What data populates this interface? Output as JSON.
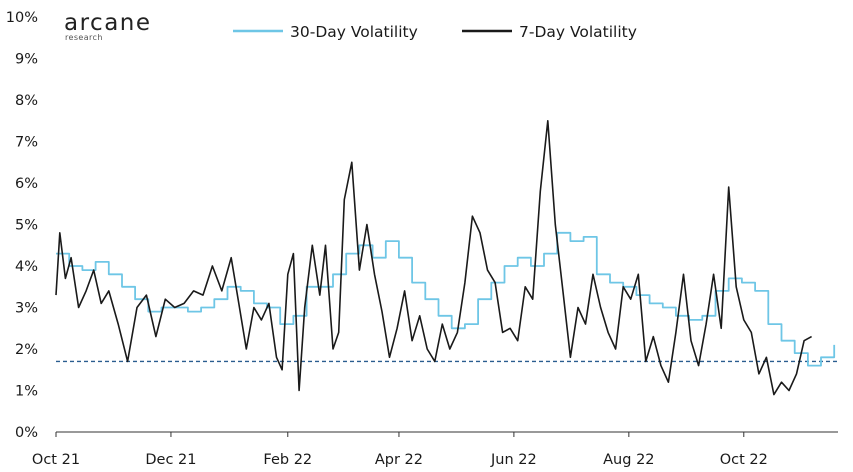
{
  "logo": {
    "name": "arcane",
    "sub": "research"
  },
  "chart_data": {
    "type": "line",
    "title": "",
    "xlabel": "",
    "ylabel": "",
    "ylim": [
      0,
      10
    ],
    "y_ticks": [
      "0%",
      "1%",
      "2%",
      "3%",
      "4%",
      "5%",
      "6%",
      "7%",
      "8%",
      "9%",
      "10%"
    ],
    "x_ticks": [
      "Oct 21",
      "Dec 21",
      "Feb 22",
      "Apr 22",
      "Jun 22",
      "Aug 22",
      "Oct 22"
    ],
    "x_range": [
      "2021-10-01",
      "2022-11-20"
    ],
    "legend": "top-center",
    "grid": false,
    "reference_line": {
      "value": 1.7,
      "style": "dashed",
      "color": "#2a5d8f"
    },
    "series": [
      {
        "name": "30-Day Volatility",
        "color": "#6ec6e6",
        "points": [
          [
            "2021-10-01",
            4.3
          ],
          [
            "2021-10-08",
            4.0
          ],
          [
            "2021-10-15",
            3.9
          ],
          [
            "2021-10-22",
            4.1
          ],
          [
            "2021-10-29",
            3.8
          ],
          [
            "2021-11-05",
            3.5
          ],
          [
            "2021-11-12",
            3.2
          ],
          [
            "2021-11-19",
            2.9
          ],
          [
            "2021-11-26",
            3.0
          ],
          [
            "2021-12-03",
            3.0
          ],
          [
            "2021-12-10",
            2.9
          ],
          [
            "2021-12-17",
            3.0
          ],
          [
            "2021-12-24",
            3.2
          ],
          [
            "2021-12-31",
            3.5
          ],
          [
            "2022-01-07",
            3.4
          ],
          [
            "2022-01-14",
            3.1
          ],
          [
            "2022-01-21",
            3.0
          ],
          [
            "2022-01-28",
            2.6
          ],
          [
            "2022-02-04",
            2.8
          ],
          [
            "2022-02-11",
            3.5
          ],
          [
            "2022-02-18",
            3.5
          ],
          [
            "2022-02-25",
            3.8
          ],
          [
            "2022-03-04",
            4.3
          ],
          [
            "2022-03-11",
            4.5
          ],
          [
            "2022-03-18",
            4.2
          ],
          [
            "2022-03-25",
            4.6
          ],
          [
            "2022-04-01",
            4.2
          ],
          [
            "2022-04-08",
            3.6
          ],
          [
            "2022-04-15",
            3.2
          ],
          [
            "2022-04-22",
            2.8
          ],
          [
            "2022-04-29",
            2.5
          ],
          [
            "2022-05-06",
            2.6
          ],
          [
            "2022-05-13",
            3.2
          ],
          [
            "2022-05-20",
            3.6
          ],
          [
            "2022-05-27",
            4.0
          ],
          [
            "2022-06-03",
            4.2
          ],
          [
            "2022-06-10",
            4.0
          ],
          [
            "2022-06-17",
            4.3
          ],
          [
            "2022-06-24",
            4.8
          ],
          [
            "2022-07-01",
            4.6
          ],
          [
            "2022-07-08",
            4.7
          ],
          [
            "2022-07-15",
            3.8
          ],
          [
            "2022-07-22",
            3.6
          ],
          [
            "2022-07-29",
            3.5
          ],
          [
            "2022-08-05",
            3.3
          ],
          [
            "2022-08-12",
            3.1
          ],
          [
            "2022-08-19",
            3.0
          ],
          [
            "2022-08-26",
            2.8
          ],
          [
            "2022-09-02",
            2.7
          ],
          [
            "2022-09-09",
            2.8
          ],
          [
            "2022-09-16",
            3.4
          ],
          [
            "2022-09-23",
            3.7
          ],
          [
            "2022-09-30",
            3.6
          ],
          [
            "2022-10-07",
            3.4
          ],
          [
            "2022-10-14",
            2.6
          ],
          [
            "2022-10-21",
            2.2
          ],
          [
            "2022-10-28",
            1.9
          ],
          [
            "2022-11-04",
            1.6
          ],
          [
            "2022-11-11",
            1.8
          ],
          [
            "2022-11-18",
            2.1
          ]
        ]
      },
      {
        "name": "7-Day Volatility",
        "color": "#1a1a1a",
        "points": [
          [
            "2021-10-01",
            3.3
          ],
          [
            "2021-10-03",
            4.8
          ],
          [
            "2021-10-06",
            3.7
          ],
          [
            "2021-10-09",
            4.2
          ],
          [
            "2021-10-13",
            3.0
          ],
          [
            "2021-10-17",
            3.4
          ],
          [
            "2021-10-21",
            3.9
          ],
          [
            "2021-10-25",
            3.1
          ],
          [
            "2021-10-29",
            3.4
          ],
          [
            "2021-11-03",
            2.6
          ],
          [
            "2021-11-08",
            1.7
          ],
          [
            "2021-11-13",
            3.0
          ],
          [
            "2021-11-18",
            3.3
          ],
          [
            "2021-11-23",
            2.3
          ],
          [
            "2021-11-28",
            3.2
          ],
          [
            "2021-12-03",
            3.0
          ],
          [
            "2021-12-08",
            3.1
          ],
          [
            "2021-12-13",
            3.4
          ],
          [
            "2021-12-18",
            3.3
          ],
          [
            "2021-12-23",
            4.0
          ],
          [
            "2021-12-28",
            3.4
          ],
          [
            "2022-01-02",
            4.2
          ],
          [
            "2022-01-06",
            3.1
          ],
          [
            "2022-01-10",
            2.0
          ],
          [
            "2022-01-14",
            3.0
          ],
          [
            "2022-01-18",
            2.7
          ],
          [
            "2022-01-22",
            3.1
          ],
          [
            "2022-01-26",
            1.8
          ],
          [
            "2022-01-29",
            1.5
          ],
          [
            "2022-02-01",
            3.8
          ],
          [
            "2022-02-04",
            4.3
          ],
          [
            "2022-02-07",
            1.0
          ],
          [
            "2022-02-10",
            3.0
          ],
          [
            "2022-02-14",
            4.5
          ],
          [
            "2022-02-18",
            3.3
          ],
          [
            "2022-02-21",
            4.5
          ],
          [
            "2022-02-25",
            2.0
          ],
          [
            "2022-02-28",
            2.4
          ],
          [
            "2022-03-03",
            5.6
          ],
          [
            "2022-03-07",
            6.5
          ],
          [
            "2022-03-11",
            3.9
          ],
          [
            "2022-03-15",
            5.0
          ],
          [
            "2022-03-19",
            3.8
          ],
          [
            "2022-03-23",
            2.9
          ],
          [
            "2022-03-27",
            1.8
          ],
          [
            "2022-03-31",
            2.5
          ],
          [
            "2022-04-04",
            3.4
          ],
          [
            "2022-04-08",
            2.2
          ],
          [
            "2022-04-12",
            2.8
          ],
          [
            "2022-04-16",
            2.0
          ],
          [
            "2022-04-20",
            1.7
          ],
          [
            "2022-04-24",
            2.6
          ],
          [
            "2022-04-28",
            2.0
          ],
          [
            "2022-05-02",
            2.4
          ],
          [
            "2022-05-06",
            3.6
          ],
          [
            "2022-05-10",
            5.2
          ],
          [
            "2022-05-14",
            4.8
          ],
          [
            "2022-05-18",
            3.9
          ],
          [
            "2022-05-22",
            3.6
          ],
          [
            "2022-05-26",
            2.4
          ],
          [
            "2022-05-30",
            2.5
          ],
          [
            "2022-06-03",
            2.2
          ],
          [
            "2022-06-07",
            3.5
          ],
          [
            "2022-06-11",
            3.2
          ],
          [
            "2022-06-15",
            5.8
          ],
          [
            "2022-06-19",
            7.5
          ],
          [
            "2022-06-23",
            5.0
          ],
          [
            "2022-06-27",
            3.4
          ],
          [
            "2022-07-01",
            1.8
          ],
          [
            "2022-07-05",
            3.0
          ],
          [
            "2022-07-09",
            2.6
          ],
          [
            "2022-07-13",
            3.8
          ],
          [
            "2022-07-17",
            3.0
          ],
          [
            "2022-07-21",
            2.4
          ],
          [
            "2022-07-25",
            2.0
          ],
          [
            "2022-07-29",
            3.5
          ],
          [
            "2022-08-02",
            3.2
          ],
          [
            "2022-08-06",
            3.8
          ],
          [
            "2022-08-10",
            1.7
          ],
          [
            "2022-08-14",
            2.3
          ],
          [
            "2022-08-18",
            1.6
          ],
          [
            "2022-08-22",
            1.2
          ],
          [
            "2022-08-26",
            2.4
          ],
          [
            "2022-08-30",
            3.8
          ],
          [
            "2022-09-03",
            2.2
          ],
          [
            "2022-09-07",
            1.6
          ],
          [
            "2022-09-11",
            2.6
          ],
          [
            "2022-09-15",
            3.8
          ],
          [
            "2022-09-19",
            2.5
          ],
          [
            "2022-09-23",
            5.9
          ],
          [
            "2022-09-27",
            3.5
          ],
          [
            "2022-10-01",
            2.7
          ],
          [
            "2022-10-05",
            2.4
          ],
          [
            "2022-10-09",
            1.4
          ],
          [
            "2022-10-13",
            1.8
          ],
          [
            "2022-10-17",
            0.9
          ],
          [
            "2022-10-21",
            1.2
          ],
          [
            "2022-10-25",
            1.0
          ],
          [
            "2022-10-29",
            1.4
          ],
          [
            "2022-11-02",
            2.2
          ],
          [
            "2022-11-06",
            2.3
          ]
        ]
      }
    ]
  }
}
